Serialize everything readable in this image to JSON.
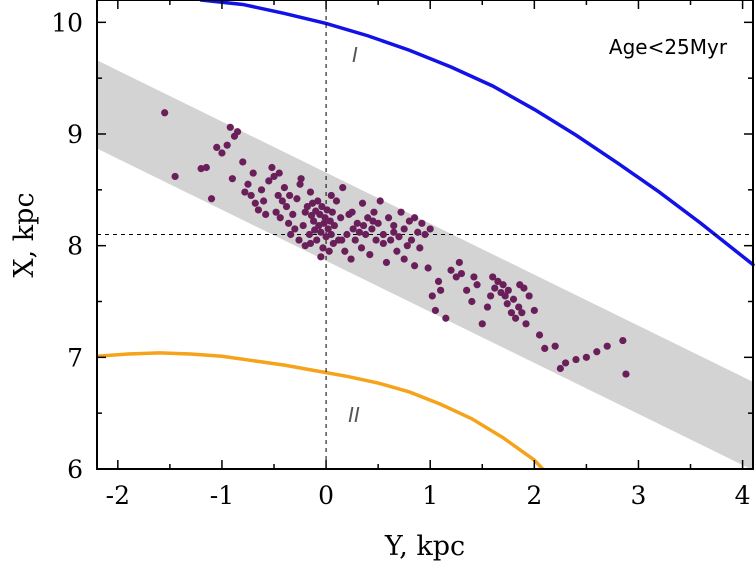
{
  "chart_data": {
    "type": "scatter",
    "title": "",
    "xlabel": "Y, kpc",
    "ylabel": "X, kpc",
    "xlim": [
      -2.2,
      4.1
    ],
    "ylim": [
      6,
      10.2
    ],
    "xticks": [
      -2,
      -1,
      0,
      1,
      2,
      3,
      4
    ],
    "yticks": [
      6,
      7,
      8,
      9,
      10
    ],
    "xtick_labels": [
      "-2",
      "-1",
      "0",
      "1",
      "2",
      "3",
      "4"
    ],
    "ytick_labels": [
      "6",
      "7",
      "8",
      "9",
      "10"
    ],
    "grid": false,
    "annotations": {
      "age_label": "Age<25Myr",
      "arm_I_label": "I",
      "arm_II_label": "II"
    },
    "reference_lines": {
      "x_zero": 0,
      "y_sun": 8.1
    },
    "band": {
      "color": "#d3d3d3",
      "upper": [
        [
          -2.2,
          9.66
        ],
        [
          4.1,
          6.78
        ]
      ],
      "lower": [
        [
          -2.2,
          8.87
        ],
        [
          4.1,
          5.99
        ]
      ]
    },
    "curves": [
      {
        "label": "I",
        "color": "#1212e8",
        "points": [
          [
            -1.2,
            10.2
          ],
          [
            -0.8,
            10.16
          ],
          [
            -0.4,
            10.08
          ],
          [
            0,
            9.99
          ],
          [
            0.4,
            9.88
          ],
          [
            0.8,
            9.75
          ],
          [
            1.2,
            9.6
          ],
          [
            1.6,
            9.43
          ],
          [
            2.0,
            9.22
          ],
          [
            2.4,
            8.99
          ],
          [
            2.8,
            8.74
          ],
          [
            3.2,
            8.48
          ],
          [
            3.6,
            8.2
          ],
          [
            4.1,
            7.83
          ]
        ]
      },
      {
        "label": "II",
        "color": "#f5a31a",
        "points": [
          [
            -2.2,
            7.01
          ],
          [
            -1.9,
            7.03
          ],
          [
            -1.6,
            7.04
          ],
          [
            -1.3,
            7.03
          ],
          [
            -1.0,
            7.01
          ],
          [
            -0.7,
            6.97
          ],
          [
            -0.4,
            6.93
          ],
          [
            -0.1,
            6.88
          ],
          [
            0.2,
            6.83
          ],
          [
            0.5,
            6.77
          ],
          [
            0.8,
            6.69
          ],
          [
            1.1,
            6.58
          ],
          [
            1.4,
            6.45
          ],
          [
            1.7,
            6.28
          ],
          [
            2.0,
            6.08
          ],
          [
            2.08,
            6.0
          ]
        ]
      }
    ],
    "point_color": "#6a1f5a",
    "points": [
      [
        -1.55,
        9.19
      ],
      [
        -1.45,
        8.62
      ],
      [
        -1.2,
        8.69
      ],
      [
        -1.15,
        8.7
      ],
      [
        -1.1,
        8.42
      ],
      [
        -1.05,
        8.88
      ],
      [
        -1.0,
        8.83
      ],
      [
        -0.95,
        8.9
      ],
      [
        -0.92,
        9.06
      ],
      [
        -0.9,
        8.6
      ],
      [
        -0.88,
        8.98
      ],
      [
        -0.85,
        9.02
      ],
      [
        -0.8,
        8.75
      ],
      [
        -0.78,
        8.48
      ],
      [
        -0.75,
        8.55
      ],
      [
        -0.72,
        8.45
      ],
      [
        -0.7,
        8.65
      ],
      [
        -0.68,
        8.38
      ],
      [
        -0.65,
        8.32
      ],
      [
        -0.62,
        8.5
      ],
      [
        -0.6,
        8.4
      ],
      [
        -0.58,
        8.28
      ],
      [
        -0.55,
        8.58
      ],
      [
        -0.52,
        8.7
      ],
      [
        -0.5,
        8.62
      ],
      [
        -0.48,
        8.3
      ],
      [
        -0.46,
        8.45
      ],
      [
        -0.44,
        8.25
      ],
      [
        -0.42,
        8.4
      ],
      [
        -0.4,
        8.52
      ],
      [
        -0.38,
        8.35
      ],
      [
        -0.36,
        8.2
      ],
      [
        -0.34,
        8.1
      ],
      [
        -0.32,
        8.28
      ],
      [
        -0.3,
        8.15
      ],
      [
        -0.28,
        8.42
      ],
      [
        -0.26,
        8.05
      ],
      [
        -0.24,
        8.6
      ],
      [
        -0.22,
        8.18
      ],
      [
        -0.2,
        8.3
      ],
      [
        -0.18,
        8.35
      ],
      [
        -0.16,
        8.1
      ],
      [
        -0.15,
        8.02
      ],
      [
        -0.14,
        8.27
      ],
      [
        -0.13,
        8.38
      ],
      [
        -0.12,
        8.22
      ],
      [
        -0.11,
        8.14
      ],
      [
        -0.1,
        8.31
      ],
      [
        -0.09,
        8.05
      ],
      [
        -0.08,
        8.4
      ],
      [
        -0.07,
        8.18
      ],
      [
        -0.06,
        8.28
      ],
      [
        -0.05,
        8.12
      ],
      [
        -0.04,
        8.35
      ],
      [
        -0.03,
        7.98
      ],
      [
        -0.02,
        8.2
      ],
      [
        -0.01,
        8.25
      ],
      [
        0.0,
        8.08
      ],
      [
        0.01,
        8.32
      ],
      [
        0.02,
        8.15
      ],
      [
        0.03,
        7.95
      ],
      [
        0.04,
        8.22
      ],
      [
        0.05,
        8.1
      ],
      [
        0.06,
        8.3
      ],
      [
        0.07,
        8.02
      ],
      [
        0.08,
        8.18
      ],
      [
        0.1,
        8.4
      ],
      [
        0.12,
        8.05
      ],
      [
        0.14,
        8.25
      ],
      [
        0.16,
        8.52
      ],
      [
        0.18,
        7.95
      ],
      [
        0.2,
        8.1
      ],
      [
        0.22,
        8.28
      ],
      [
        0.24,
        7.88
      ],
      [
        0.26,
        8.15
      ],
      [
        0.28,
        8.05
      ],
      [
        0.3,
        8.2
      ],
      [
        0.32,
        8.12
      ],
      [
        0.34,
        7.98
      ],
      [
        0.36,
        8.18
      ],
      [
        0.38,
        8.1
      ],
      [
        0.4,
        8.25
      ],
      [
        0.42,
        7.92
      ],
      [
        0.44,
        8.15
      ],
      [
        0.46,
        8.3
      ],
      [
        0.48,
        8.05
      ],
      [
        0.5,
        8.2
      ],
      [
        0.52,
        8.4
      ],
      [
        0.55,
        8.1
      ],
      [
        0.58,
        7.85
      ],
      [
        0.6,
        8.25
      ],
      [
        0.62,
        8.05
      ],
      [
        0.65,
        8.18
      ],
      [
        0.68,
        7.95
      ],
      [
        0.7,
        8.08
      ],
      [
        0.72,
        8.3
      ],
      [
        0.75,
        8.15
      ],
      [
        0.78,
        8.0
      ],
      [
        0.8,
        8.22
      ],
      [
        0.82,
        8.05
      ],
      [
        0.85,
        7.82
      ],
      [
        0.88,
        8.12
      ],
      [
        0.9,
        7.98
      ],
      [
        0.92,
        8.2
      ],
      [
        0.95,
        8.1
      ],
      [
        0.98,
        7.8
      ],
      [
        1.0,
        8.15
      ],
      [
        1.02,
        7.55
      ],
      [
        1.05,
        7.42
      ],
      [
        1.08,
        7.68
      ],
      [
        1.1,
        7.6
      ],
      [
        1.15,
        7.35
      ],
      [
        1.2,
        7.78
      ],
      [
        1.25,
        7.72
      ],
      [
        1.3,
        7.75
      ],
      [
        1.35,
        7.6
      ],
      [
        1.4,
        7.5
      ],
      [
        1.45,
        7.65
      ],
      [
        1.5,
        7.3
      ],
      [
        1.55,
        7.45
      ],
      [
        1.6,
        7.72
      ],
      [
        1.62,
        7.62
      ],
      [
        1.65,
        7.68
      ],
      [
        1.68,
        7.58
      ],
      [
        1.7,
        7.65
      ],
      [
        1.72,
        7.55
      ],
      [
        1.75,
        7.6
      ],
      [
        1.78,
        7.4
      ],
      [
        1.8,
        7.52
      ],
      [
        1.82,
        7.35
      ],
      [
        1.85,
        7.45
      ],
      [
        1.88,
        7.4
      ],
      [
        1.9,
        7.62
      ],
      [
        1.92,
        7.3
      ],
      [
        1.95,
        7.55
      ],
      [
        2.0,
        7.42
      ],
      [
        2.05,
        7.2
      ],
      [
        2.1,
        7.08
      ],
      [
        2.2,
        7.1
      ],
      [
        2.25,
        6.9
      ],
      [
        2.3,
        6.95
      ],
      [
        2.4,
        6.98
      ],
      [
        2.5,
        7.0
      ],
      [
        2.6,
        7.05
      ],
      [
        2.7,
        7.1
      ],
      [
        2.85,
        7.15
      ],
      [
        2.88,
        6.85
      ],
      [
        -0.25,
        8.55
      ],
      [
        -0.35,
        8.45
      ],
      [
        -0.45,
        8.65
      ],
      [
        0.15,
        8.05
      ],
      [
        0.25,
        8.3
      ],
      [
        0.35,
        8.38
      ],
      [
        0.45,
        8.22
      ],
      [
        0.55,
        8.02
      ],
      [
        0.65,
        8.12
      ],
      [
        0.75,
        7.88
      ],
      [
        0.85,
        8.25
      ],
      [
        -0.2,
        8.0
      ],
      [
        -0.15,
        8.48
      ],
      [
        -0.05,
        7.9
      ],
      [
        0.05,
        8.45
      ],
      [
        1.28,
        7.85
      ],
      [
        1.42,
        7.72
      ],
      [
        1.58,
        7.55
      ],
      [
        1.74,
        7.48
      ],
      [
        1.86,
        7.65
      ]
    ]
  }
}
